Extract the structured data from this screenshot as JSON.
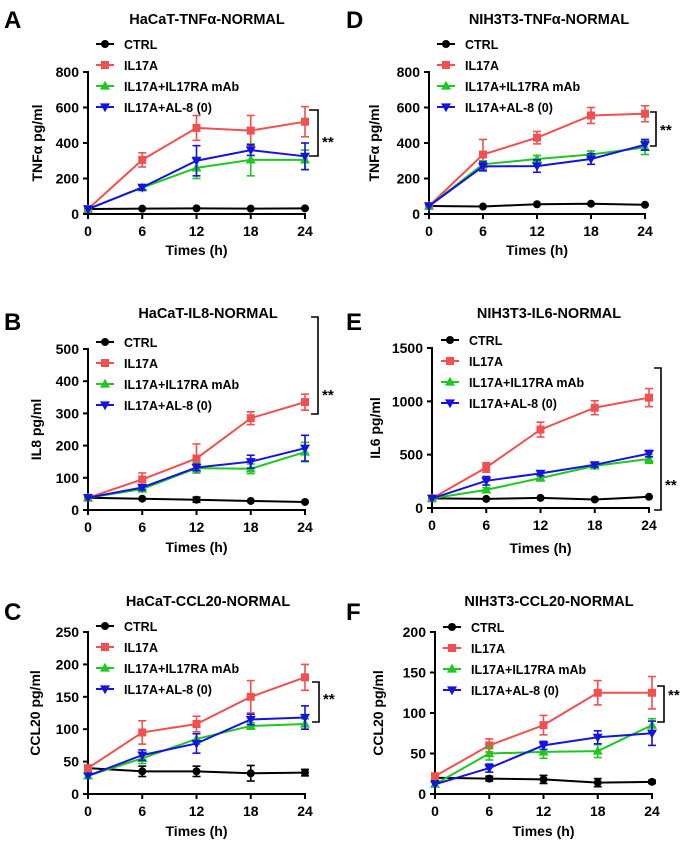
{
  "chart_data": [
    {
      "type": "line",
      "panel_label": "A",
      "title": "HaCaT-TNFα-NORMAL",
      "xlabel": "Times (h)",
      "ylabel": "TNFα pg/ml",
      "x": [
        0,
        6,
        12,
        18,
        24
      ],
      "xticks": [
        "0",
        "6",
        "12",
        "18",
        "24"
      ],
      "xlim": [
        0,
        24
      ],
      "ylim": [
        0,
        800
      ],
      "yticks": [
        0,
        200,
        400,
        600,
        800
      ],
      "significance": "**",
      "series": [
        {
          "name": "CTRL",
          "color": "#000000",
          "marker": "circle",
          "values": [
            28,
            30,
            32,
            30,
            32
          ],
          "errors": [
            0,
            0,
            0,
            0,
            0
          ]
        },
        {
          "name": "IL17A",
          "color": "#f0504f",
          "marker": "square",
          "values": [
            28,
            305,
            485,
            470,
            520
          ],
          "errors": [
            0,
            40,
            70,
            85,
            85
          ]
        },
        {
          "name": "IL17A+IL17RA mAb",
          "color": "#1ec81e",
          "marker": "triangle-up",
          "values": [
            28,
            148,
            260,
            305,
            305
          ],
          "errors": [
            0,
            15,
            60,
            90,
            55
          ]
        },
        {
          "name": "IL17A+AL-8 (0)",
          "color": "#1414dc",
          "marker": "triangle-down",
          "values": [
            28,
            150,
            300,
            360,
            325
          ],
          "errors": [
            0,
            15,
            85,
            30,
            75
          ]
        }
      ]
    },
    {
      "type": "line",
      "panel_label": "D",
      "title": "NIH3T3-TNFα-NORMAL",
      "xlabel": "Times (h)",
      "ylabel": "TNFα pg/ml",
      "x": [
        0,
        6,
        12,
        18,
        24
      ],
      "xticks": [
        "0",
        "6",
        "12",
        "18",
        "24"
      ],
      "xlim": [
        0,
        24
      ],
      "ylim": [
        0,
        800
      ],
      "yticks": [
        0,
        200,
        400,
        600,
        800
      ],
      "significance": "**",
      "series": [
        {
          "name": "CTRL",
          "color": "#000000",
          "marker": "circle",
          "values": [
            45,
            42,
            55,
            58,
            52
          ],
          "errors": [
            0,
            0,
            0,
            0,
            0
          ]
        },
        {
          "name": "IL17A",
          "color": "#f0504f",
          "marker": "square",
          "values": [
            45,
            335,
            430,
            555,
            565
          ],
          "errors": [
            0,
            85,
            35,
            45,
            45
          ]
        },
        {
          "name": "IL17A+IL17RA mAb",
          "color": "#1ec81e",
          "marker": "triangle-up",
          "values": [
            45,
            280,
            310,
            335,
            375
          ],
          "errors": [
            0,
            20,
            20,
            20,
            40
          ]
        },
        {
          "name": "IL17A+AL-8 (0)",
          "color": "#1414dc",
          "marker": "triangle-down",
          "values": [
            45,
            268,
            270,
            310,
            390
          ],
          "errors": [
            0,
            25,
            35,
            30,
            30
          ]
        }
      ]
    },
    {
      "type": "line",
      "panel_label": "B",
      "title": "HaCaT-IL8-NORMAL",
      "xlabel": "Times (h)",
      "ylabel": "IL8 pg/ml",
      "x": [
        0,
        6,
        12,
        18,
        24
      ],
      "xticks": [
        "0",
        "6",
        "12",
        "18",
        "24"
      ],
      "xlim": [
        0,
        24
      ],
      "ylim": [
        0,
        500
      ],
      "yticks": [
        0,
        100,
        200,
        300,
        400,
        500
      ],
      "significance": "**",
      "series": [
        {
          "name": "CTRL",
          "color": "#000000",
          "marker": "circle",
          "values": [
            38,
            35,
            32,
            28,
            25
          ],
          "errors": [
            0,
            0,
            8,
            0,
            0
          ]
        },
        {
          "name": "IL17A",
          "color": "#f0504f",
          "marker": "square",
          "values": [
            38,
            95,
            160,
            285,
            335
          ],
          "errors": [
            0,
            20,
            45,
            20,
            25
          ]
        },
        {
          "name": "IL17A+IL17RA mAb",
          "color": "#1ec81e",
          "marker": "triangle-up",
          "values": [
            38,
            65,
            130,
            128,
            180
          ],
          "errors": [
            0,
            8,
            15,
            15,
            30
          ]
        },
        {
          "name": "IL17A+AL-8 (0)",
          "color": "#1414dc",
          "marker": "triangle-down",
          "values": [
            38,
            70,
            132,
            150,
            192
          ],
          "errors": [
            0,
            8,
            10,
            20,
            40
          ]
        }
      ]
    },
    {
      "type": "line",
      "panel_label": "E",
      "title": "NIH3T3-IL6-NORMAL",
      "xlabel": "Times (h)",
      "ylabel": "IL6 pg/ml",
      "x": [
        0,
        6,
        12,
        18,
        24
      ],
      "xticks": [
        "0",
        "6",
        "12",
        "18",
        "24"
      ],
      "xlim": [
        0,
        24
      ],
      "ylim": [
        0,
        1500
      ],
      "yticks": [
        0,
        500,
        1000,
        1500
      ],
      "significance": "**",
      "series": [
        {
          "name": "CTRL",
          "color": "#000000",
          "marker": "circle",
          "values": [
            90,
            85,
            95,
            80,
            105
          ],
          "errors": [
            0,
            0,
            0,
            0,
            0
          ]
        },
        {
          "name": "IL17A",
          "color": "#f0504f",
          "marker": "square",
          "values": [
            90,
            380,
            735,
            940,
            1035
          ],
          "errors": [
            0,
            45,
            70,
            65,
            85
          ]
        },
        {
          "name": "IL17A+IL17RA mAb",
          "color": "#1ec81e",
          "marker": "triangle-up",
          "values": [
            90,
            170,
            280,
            395,
            460
          ],
          "errors": [
            0,
            20,
            20,
            25,
            40
          ]
        },
        {
          "name": "IL17A+AL-8 (0)",
          "color": "#1414dc",
          "marker": "triangle-down",
          "values": [
            90,
            255,
            325,
            405,
            510
          ],
          "errors": [
            0,
            40,
            20,
            20,
            30
          ]
        }
      ]
    },
    {
      "type": "line",
      "panel_label": "C",
      "title": "HaCaT-CCL20-NORMAL",
      "xlabel": "Times (h)",
      "ylabel": "CCL20 pg/ml",
      "x": [
        0,
        6,
        12,
        18,
        24
      ],
      "xticks": [
        "0",
        "6",
        "12",
        "18",
        "24"
      ],
      "xlim": [
        0,
        24
      ],
      "ylim": [
        0,
        250
      ],
      "yticks": [
        0,
        50,
        100,
        150,
        200,
        250
      ],
      "significance": "**",
      "series": [
        {
          "name": "CTRL",
          "color": "#000000",
          "marker": "circle",
          "values": [
            40,
            35,
            35,
            32,
            33
          ],
          "errors": [
            0,
            8,
            8,
            12,
            5
          ]
        },
        {
          "name": "IL17A",
          "color": "#f0504f",
          "marker": "square",
          "values": [
            40,
            95,
            108,
            150,
            180
          ],
          "errors": [
            0,
            18,
            12,
            25,
            20
          ]
        },
        {
          "name": "IL17A+IL17RA mAb",
          "color": "#1ec81e",
          "marker": "triangle-up",
          "values": [
            28,
            55,
            85,
            105,
            108
          ],
          "errors": [
            0,
            8,
            8,
            5,
            8
          ]
        },
        {
          "name": "IL17A+AL-8 (0)",
          "color": "#1414dc",
          "marker": "triangle-down",
          "values": [
            28,
            60,
            78,
            115,
            118
          ],
          "errors": [
            0,
            8,
            15,
            8,
            18
          ]
        }
      ]
    },
    {
      "type": "line",
      "panel_label": "F",
      "title": "NIH3T3-CCL20-NORMAL",
      "xlabel": "Times (h)",
      "ylabel": "CCL20 pg/ml",
      "x": [
        0,
        6,
        12,
        18,
        24
      ],
      "xticks": [
        "0",
        "6",
        "12",
        "18",
        "24"
      ],
      "xlim": [
        0,
        24
      ],
      "ylim": [
        0,
        200
      ],
      "yticks": [
        0,
        50,
        100,
        150,
        200
      ],
      "significance": "**",
      "series": [
        {
          "name": "CTRL",
          "color": "#000000",
          "marker": "circle",
          "values": [
            20,
            19,
            18,
            14,
            15
          ],
          "errors": [
            3,
            3,
            5,
            5,
            2
          ]
        },
        {
          "name": "IL17A",
          "color": "#f0504f",
          "marker": "square",
          "values": [
            22,
            60,
            85,
            125,
            125
          ],
          "errors": [
            3,
            8,
            12,
            15,
            20
          ]
        },
        {
          "name": "IL17A+IL17RA mAb",
          "color": "#1ec81e",
          "marker": "triangle-up",
          "values": [
            12,
            50,
            52,
            53,
            85
          ],
          "errors": [
            0,
            8,
            8,
            8,
            8
          ]
        },
        {
          "name": "IL17A+AL-8 (0)",
          "color": "#1414dc",
          "marker": "triangle-down",
          "values": [
            12,
            32,
            60,
            70,
            75
          ],
          "errors": [
            0,
            5,
            5,
            8,
            15
          ]
        }
      ]
    }
  ]
}
